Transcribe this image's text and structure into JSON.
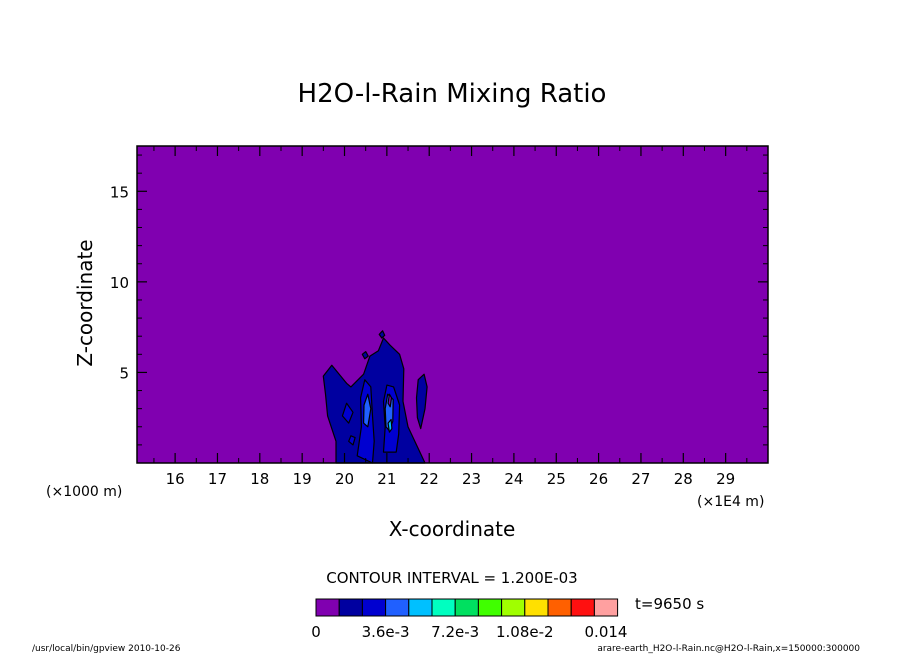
{
  "chart_data": {
    "type": "contour",
    "title": "H2O-l-Rain Mixing Ratio",
    "xlabel": "X-coordinate",
    "ylabel": "Z-coordinate",
    "x_unit_note": "(×1E4 m)",
    "y_unit_note": "(×1000 m)",
    "xlim": [
      15.1,
      30.0
    ],
    "ylim": [
      0,
      17.5
    ],
    "x_ticks": [
      16,
      17,
      18,
      19,
      20,
      21,
      22,
      23,
      24,
      25,
      26,
      27,
      28,
      29
    ],
    "y_ticks": [
      5,
      10,
      15
    ],
    "contour_interval_text": "CONTOUR INTERVAL = 1.200E-03",
    "time_label": "t=9650 s",
    "colorbar": {
      "colors": [
        "#8000b0",
        "#0000a0",
        "#0000d0",
        "#2060ff",
        "#00c0ff",
        "#00ffc0",
        "#00e060",
        "#40ff00",
        "#a0ff00",
        "#ffe000",
        "#ff6000",
        "#ff1010",
        "#ffa0a0"
      ],
      "tick_labels": [
        "0",
        "3.6e-3",
        "7.2e-3",
        "1.08e-2",
        "0.014"
      ]
    },
    "regions": [
      {
        "level": 1,
        "points": [
          [
            19.8,
            0
          ],
          [
            19.8,
            1.2
          ],
          [
            19.6,
            2.6
          ],
          [
            19.55,
            3.8
          ],
          [
            19.5,
            4.8
          ],
          [
            19.7,
            5.4
          ],
          [
            20.05,
            4.4
          ],
          [
            20.15,
            4.2
          ],
          [
            20.45,
            4.9
          ],
          [
            20.6,
            5.9
          ],
          [
            20.8,
            6.2
          ],
          [
            20.92,
            6.9
          ],
          [
            21.08,
            6.5
          ],
          [
            21.3,
            6.0
          ],
          [
            21.4,
            5.2
          ],
          [
            21.38,
            3.4
          ],
          [
            21.5,
            2.0
          ],
          [
            21.7,
            1.0
          ],
          [
            21.9,
            0
          ]
        ]
      },
      {
        "level": 1,
        "points": [
          [
            21.8,
            1.9
          ],
          [
            21.9,
            3.0
          ],
          [
            21.95,
            4.2
          ],
          [
            21.88,
            4.9
          ],
          [
            21.74,
            4.6
          ],
          [
            21.7,
            3.6
          ],
          [
            21.72,
            2.5
          ]
        ]
      },
      {
        "level": 1,
        "points": [
          [
            20.42,
            6.0
          ],
          [
            20.48,
            5.75
          ],
          [
            20.56,
            5.9
          ],
          [
            20.5,
            6.15
          ]
        ]
      },
      {
        "level": 1,
        "points": [
          [
            20.82,
            7.1
          ],
          [
            20.88,
            6.9
          ],
          [
            20.95,
            7.05
          ],
          [
            20.9,
            7.3
          ]
        ]
      },
      {
        "level": 2,
        "points": [
          [
            20.3,
            0.4
          ],
          [
            20.4,
            2.0
          ],
          [
            20.38,
            3.6
          ],
          [
            20.48,
            4.6
          ],
          [
            20.62,
            4.2
          ],
          [
            20.66,
            2.6
          ],
          [
            20.7,
            1.2
          ],
          [
            20.66,
            0
          ]
        ]
      },
      {
        "level": 2,
        "points": [
          [
            20.92,
            0.6
          ],
          [
            20.96,
            2.0
          ],
          [
            20.92,
            3.4
          ],
          [
            21.0,
            4.3
          ],
          [
            21.16,
            4.2
          ],
          [
            21.3,
            3.2
          ],
          [
            21.28,
            1.6
          ],
          [
            21.22,
            0.6
          ]
        ]
      },
      {
        "level": 2,
        "points": [
          [
            19.95,
            2.6
          ],
          [
            20.1,
            2.2
          ],
          [
            20.2,
            2.8
          ],
          [
            20.05,
            3.3
          ]
        ]
      },
      {
        "level": 2,
        "points": [
          [
            20.1,
            1.2
          ],
          [
            20.2,
            1.0
          ],
          [
            20.25,
            1.4
          ],
          [
            20.15,
            1.5
          ]
        ]
      },
      {
        "level": 3,
        "points": [
          [
            20.45,
            2.2
          ],
          [
            20.55,
            2.0
          ],
          [
            20.62,
            3.0
          ],
          [
            20.55,
            3.8
          ],
          [
            20.46,
            3.2
          ]
        ]
      },
      {
        "level": 3,
        "points": [
          [
            20.98,
            2.0
          ],
          [
            21.05,
            1.8
          ],
          [
            21.14,
            2.3
          ],
          [
            21.15,
            3.5
          ],
          [
            21.02,
            3.8
          ],
          [
            20.96,
            3.0
          ]
        ]
      },
      {
        "level": 4,
        "points": [
          [
            21.06,
            1.7
          ],
          [
            21.12,
            1.9
          ],
          [
            21.1,
            2.4
          ],
          [
            21.03,
            2.2
          ]
        ]
      },
      {
        "level": 0,
        "points": [
          [
            21.03,
            3.3
          ],
          [
            21.08,
            3.1
          ],
          [
            21.11,
            3.6
          ],
          [
            21.06,
            3.8
          ]
        ]
      }
    ]
  },
  "footer": {
    "left": "/usr/local/bin/gpview  2010-10-26",
    "right": "arare-earth_H2O-l-Rain.nc@H2O-l-Rain,x=150000:300000"
  }
}
